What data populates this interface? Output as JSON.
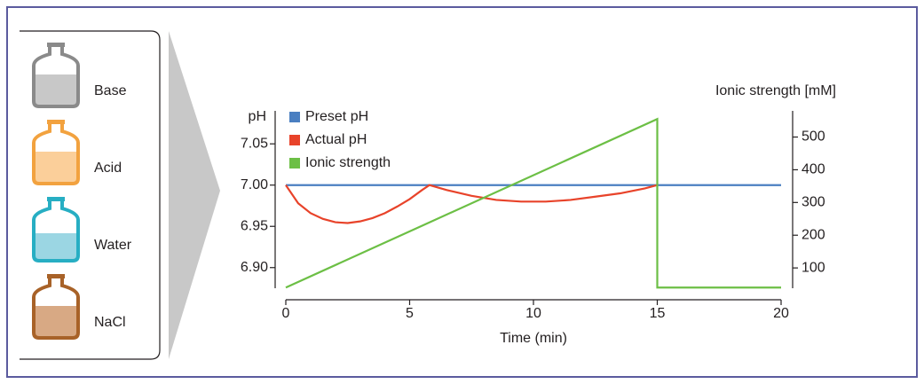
{
  "panel": {
    "bottles": [
      {
        "label": "Base"
      },
      {
        "label": "Acid"
      },
      {
        "label": "Water"
      },
      {
        "label": "NaCl"
      }
    ]
  },
  "chart_data": {
    "type": "line",
    "x_label": "Time (min)",
    "y_label": "pH",
    "y2_label": "Ionic strength [mM]",
    "xlim": [
      0,
      20
    ],
    "xticks": [
      0,
      5,
      10,
      15,
      20
    ],
    "ylim": [
      6.875,
      7.09
    ],
    "yticks": [
      {
        "value": 6.9,
        "label": "6.90"
      },
      6.95,
      {
        "value": 7.0,
        "label": "7.00"
      },
      7.05
    ],
    "y2lim": [
      38,
      580
    ],
    "y2ticks": [
      100,
      200,
      300,
      400,
      500
    ],
    "series": [
      {
        "name": "Preset pH",
        "color": "#4a7fc1",
        "x": [
          0,
          20
        ],
        "values": [
          7.0,
          7.0
        ]
      },
      {
        "name": "Actual pH",
        "color": "#e8432a",
        "x": [
          0,
          0.5,
          1,
          1.5,
          2,
          2.5,
          3,
          3.5,
          4,
          4.5,
          5,
          5.5,
          5.8,
          6.5,
          7.5,
          8.5,
          9.5,
          10.5,
          11.5,
          12.5,
          13.5,
          14.5,
          15
        ],
        "values": [
          7.0,
          6.978,
          6.966,
          6.959,
          6.955,
          6.954,
          6.956,
          6.96,
          6.966,
          6.974,
          6.983,
          6.994,
          7.0,
          6.994,
          6.987,
          6.982,
          6.98,
          6.98,
          6.982,
          6.986,
          6.99,
          6.996,
          7.0
        ]
      },
      {
        "name": "Ionic strength",
        "color": "#6cbf45",
        "axis": "y2",
        "x": [
          0,
          15,
          15,
          20
        ],
        "values": [
          40,
          555,
          40,
          40
        ]
      }
    ]
  }
}
